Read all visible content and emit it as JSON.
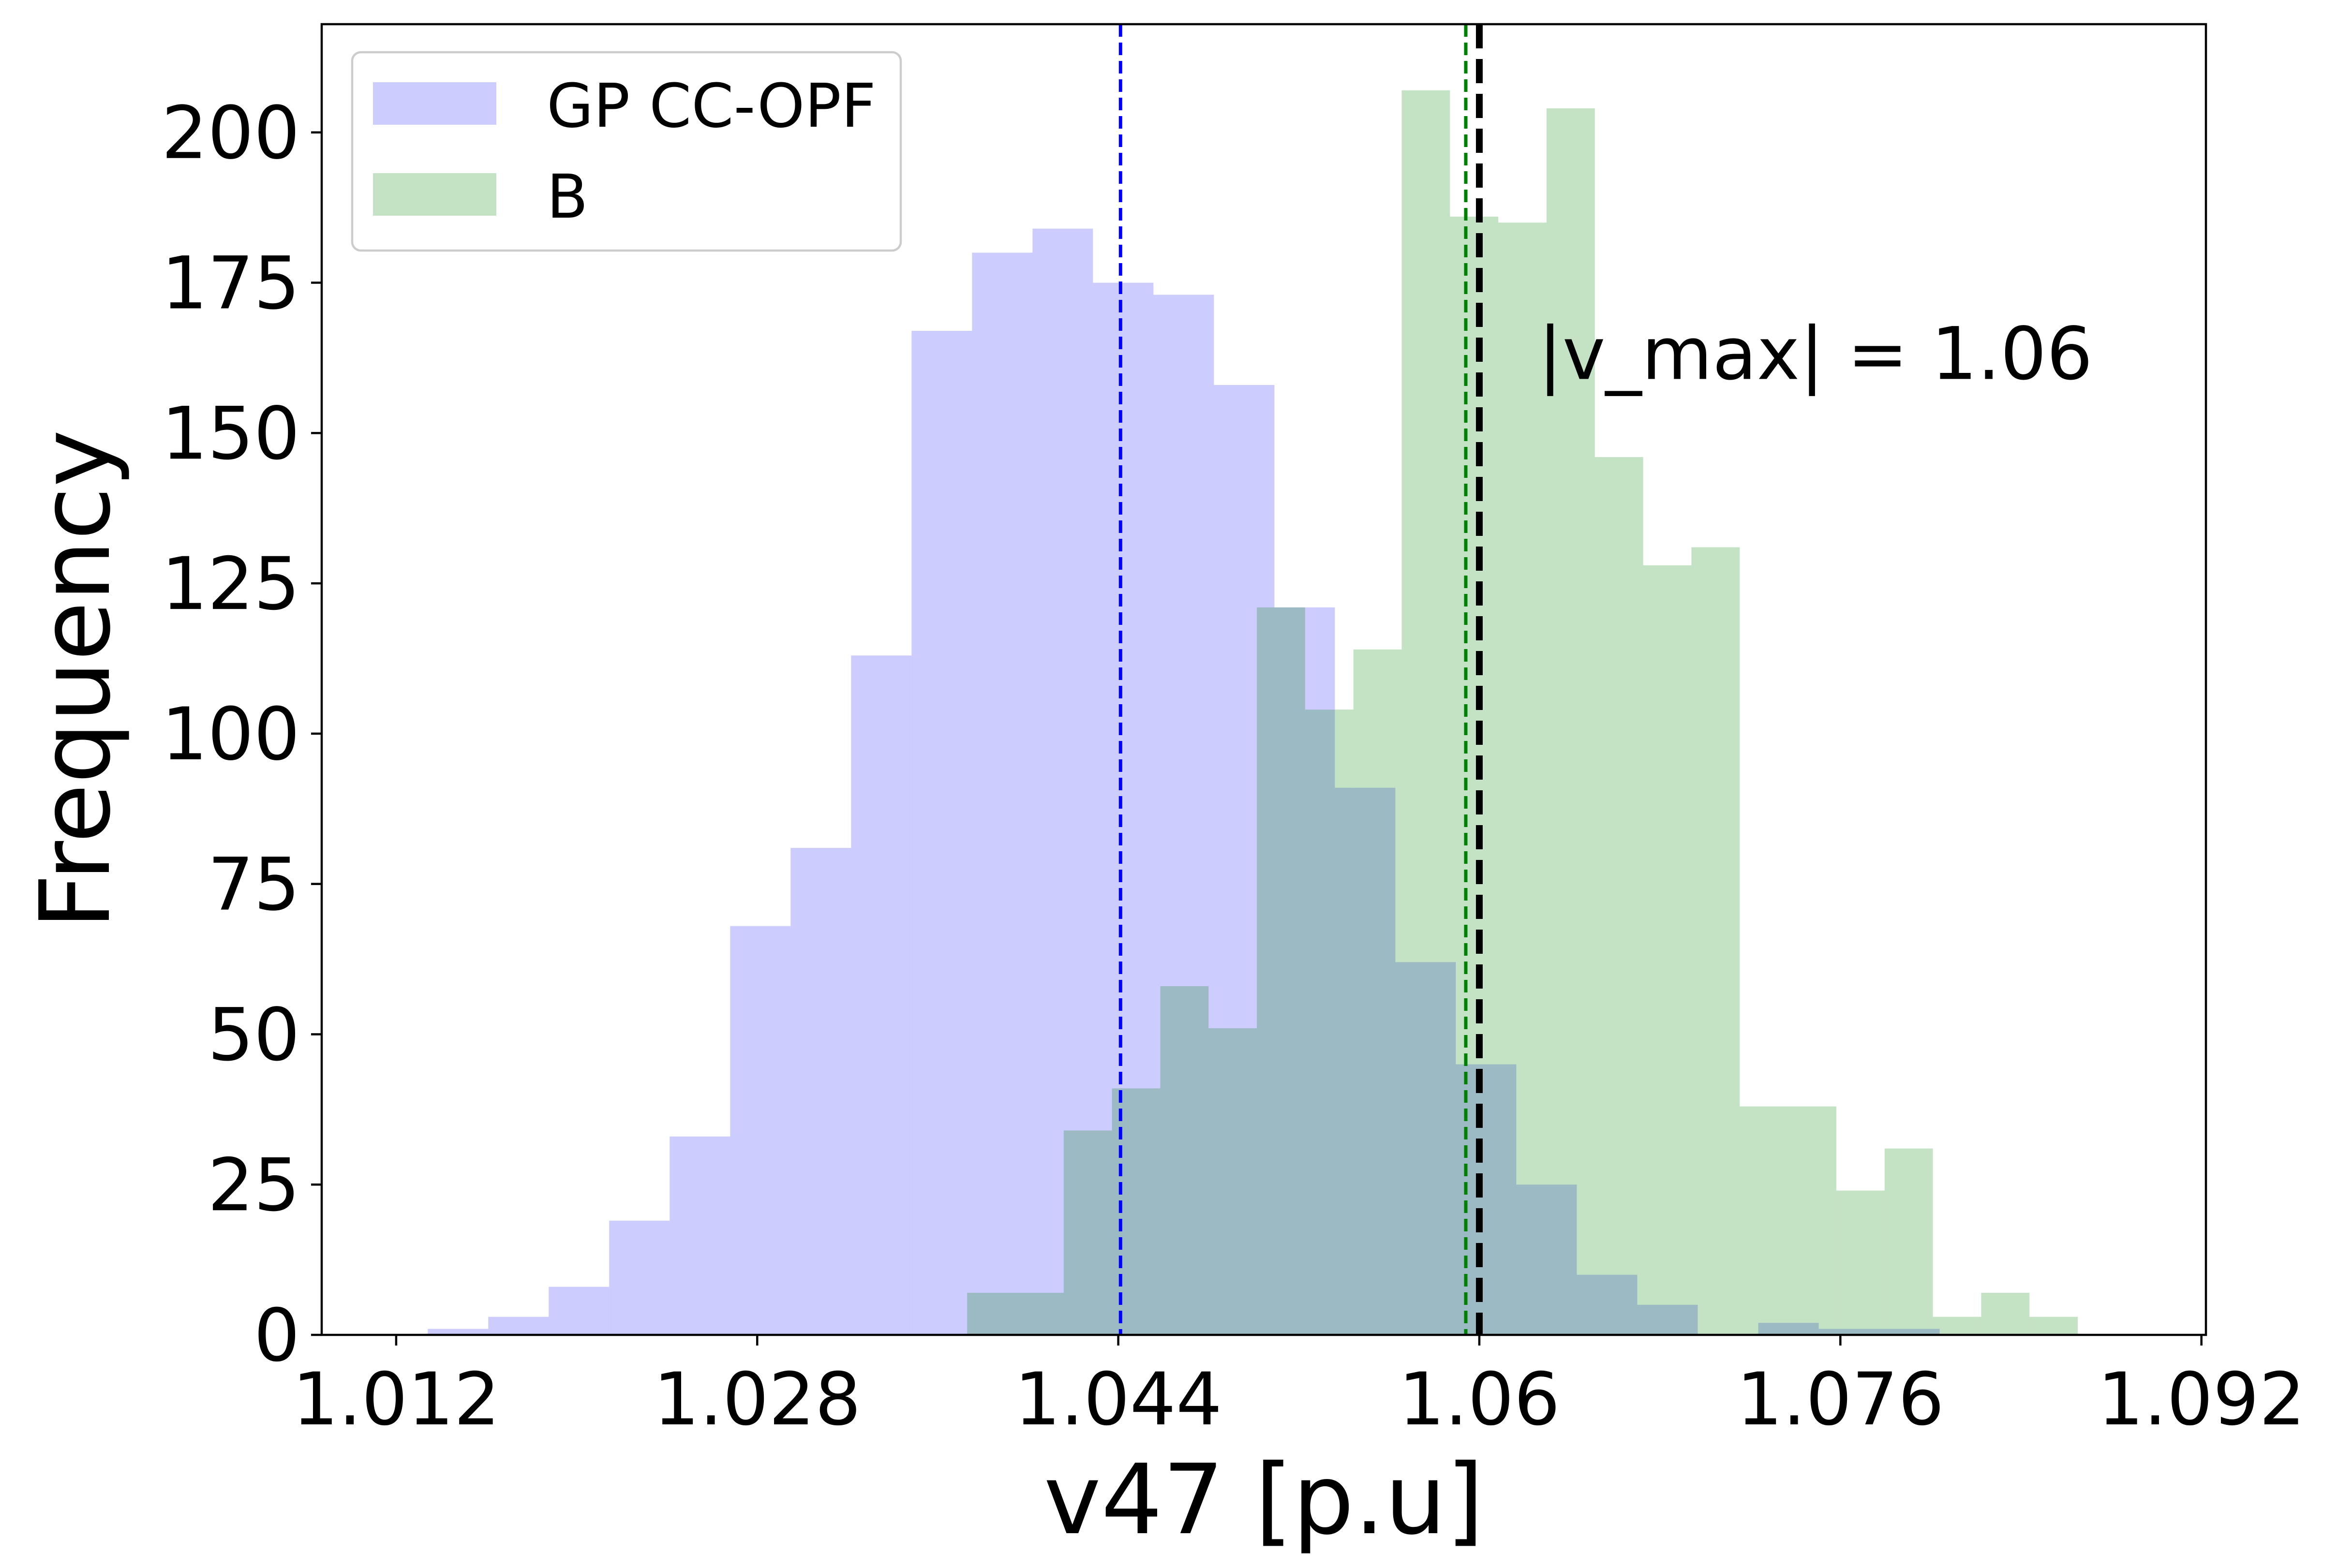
{
  "chart_data": {
    "type": "bar",
    "subtype": "overlapping-histogram",
    "title": "",
    "xlabel": "v47 [p.u]",
    "ylabel": "Frequency",
    "xlim": [
      1.0087,
      1.0922
    ],
    "ylim": [
      0,
      218
    ],
    "xticks": [
      {
        "value": 1.012,
        "label": "1.012"
      },
      {
        "value": 1.028,
        "label": "1.028"
      },
      {
        "value": 1.044,
        "label": "1.044"
      },
      {
        "value": 1.06,
        "label": "1.06"
      },
      {
        "value": 1.076,
        "label": "1.076"
      },
      {
        "value": 1.092,
        "label": "1.092"
      }
    ],
    "yticks": [
      {
        "value": 0,
        "label": "0"
      },
      {
        "value": 25,
        "label": "25"
      },
      {
        "value": 50,
        "label": "50"
      },
      {
        "value": 75,
        "label": "75"
      },
      {
        "value": 100,
        "label": "100"
      },
      {
        "value": 125,
        "label": "125"
      },
      {
        "value": 150,
        "label": "150"
      },
      {
        "value": 175,
        "label": "175"
      },
      {
        "value": 200,
        "label": "200"
      }
    ],
    "grid": false,
    "legend_position": "upper-left",
    "series": [
      {
        "name": "GP CC-OPF",
        "color": "#0000ff",
        "opacity": 0.2,
        "bin_start": 1.0134,
        "bin_width": 0.00268,
        "counts": [
          1,
          3,
          8,
          19,
          33,
          68,
          81,
          113,
          167,
          180,
          184,
          175,
          173,
          158,
          121,
          91,
          62,
          45,
          25,
          10,
          5,
          0,
          2,
          1,
          1,
          0
        ]
      },
      {
        "name": "B",
        "color": "#008000",
        "opacity": 0.23,
        "bin_start": 1.0373,
        "bin_width": 0.00214,
        "counts": [
          7,
          7,
          34,
          41,
          58,
          51,
          121,
          104,
          114,
          207,
          186,
          185,
          204,
          146,
          128,
          131,
          38,
          38,
          24,
          31,
          3,
          7,
          3
        ]
      }
    ],
    "vlines": [
      {
        "x": 1.0441,
        "color": "#0000ff",
        "style": "dashed"
      },
      {
        "x": 1.0594,
        "color": "#008000",
        "style": "dashed"
      },
      {
        "x": 1.06,
        "color": "#000000",
        "style": "dashed-thick"
      }
    ],
    "annotation": {
      "text": "|v_max| = 1.06",
      "x": 1.0626,
      "y": 159
    }
  }
}
